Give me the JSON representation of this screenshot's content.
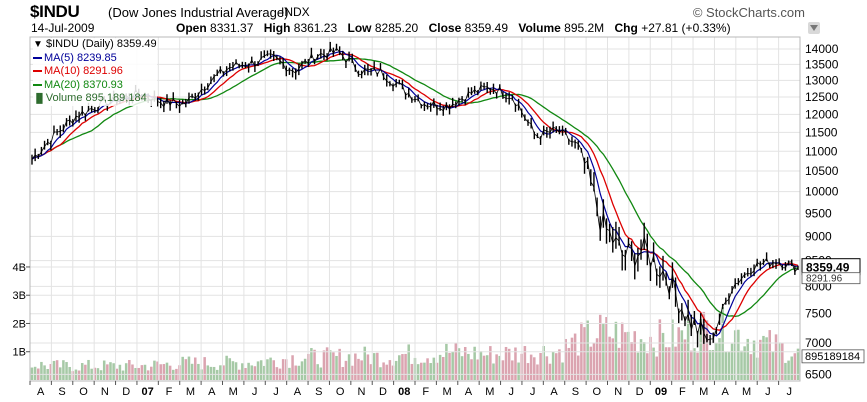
{
  "header": {
    "symbol": "$INDU",
    "name": "(Dow Jones Industrial Average)",
    "exchange": "INDX",
    "brand": "© StockCharts.com",
    "date": "14-Jul-2009",
    "open_label": "Open",
    "open": "8331.37",
    "high_label": "High",
    "high": "8361.23",
    "low_label": "Low",
    "low": "8285.20",
    "close_label": "Close",
    "close": "8359.49",
    "volume_label": "Volume",
    "volume": "895.2M",
    "chg_label": "Chg",
    "chg": "+27.81 (+0.33%)"
  },
  "legend": {
    "price": "$INDU (Daily) 8359.49",
    "ma5": "MA(5) 8239.85",
    "ma10": "MA(10) 8291.96",
    "ma20": "MA(20) 8370.93",
    "volume": "Volume 895,189,184"
  },
  "colors": {
    "price": "#000000",
    "ma5": "#000099",
    "ma10": "#dd0000",
    "ma20": "#118811",
    "vol_up": "#a6c9a6",
    "vol_down": "#dba4b0",
    "border": "#aaaaaa",
    "grid": "#e3e3e3",
    "last_badge": "#ffffff",
    "frame": "#b8b8b8"
  },
  "chart_data": {
    "type": "line",
    "scale": "log",
    "ylim": [
      6400,
      14400
    ],
    "y_ticks": [
      6500,
      7000,
      7500,
      8000,
      8500,
      9000,
      9500,
      10000,
      10500,
      11000,
      11500,
      12000,
      12500,
      13000,
      13500,
      14000
    ],
    "last_value_label": "8359.49",
    "ma_last_label": "8291.96",
    "volume_axis": {
      "ticks": [
        "1B",
        "2B",
        "3B",
        "4B"
      ],
      "values": [
        1,
        2,
        3,
        4
      ],
      "max": 4.6,
      "last_label": "895189184"
    },
    "x_months": [
      "A",
      "S",
      "O",
      "N",
      "D",
      "07",
      "F",
      "M",
      "A",
      "M",
      "J",
      "J",
      "A",
      "S",
      "O",
      "N",
      "D",
      "08",
      "F",
      "M",
      "A",
      "M",
      "J",
      "J",
      "A",
      "S",
      "O",
      "N",
      "D",
      "09",
      "F",
      "M",
      "A",
      "M",
      "J",
      "J"
    ],
    "x_bold": [
      "07",
      "08",
      "09"
    ],
    "price_months": [
      10800,
      11400,
      11950,
      12250,
      12450,
      12600,
      12350,
      12300,
      12900,
      13400,
      13550,
      13700,
      13300,
      13800,
      13900,
      13300,
      13250,
      12700,
      12300,
      12250,
      12600,
      12800,
      12500,
      11400,
      11550,
      11100,
      9300,
      8600,
      8700,
      8200,
      7400,
      7000,
      8000,
      8400,
      8500,
      8359.49
    ],
    "volume_months": [
      0.55,
      0.5,
      0.5,
      0.5,
      0.5,
      0.5,
      0.55,
      0.6,
      0.6,
      0.6,
      0.62,
      0.7,
      0.8,
      0.8,
      0.8,
      0.85,
      0.8,
      0.9,
      0.9,
      1.0,
      0.95,
      0.9,
      0.95,
      1.0,
      1.0,
      1.4,
      1.7,
      1.6,
      1.5,
      1.5,
      1.6,
      1.9,
      1.7,
      1.4,
      1.2,
      0.9
    ]
  }
}
